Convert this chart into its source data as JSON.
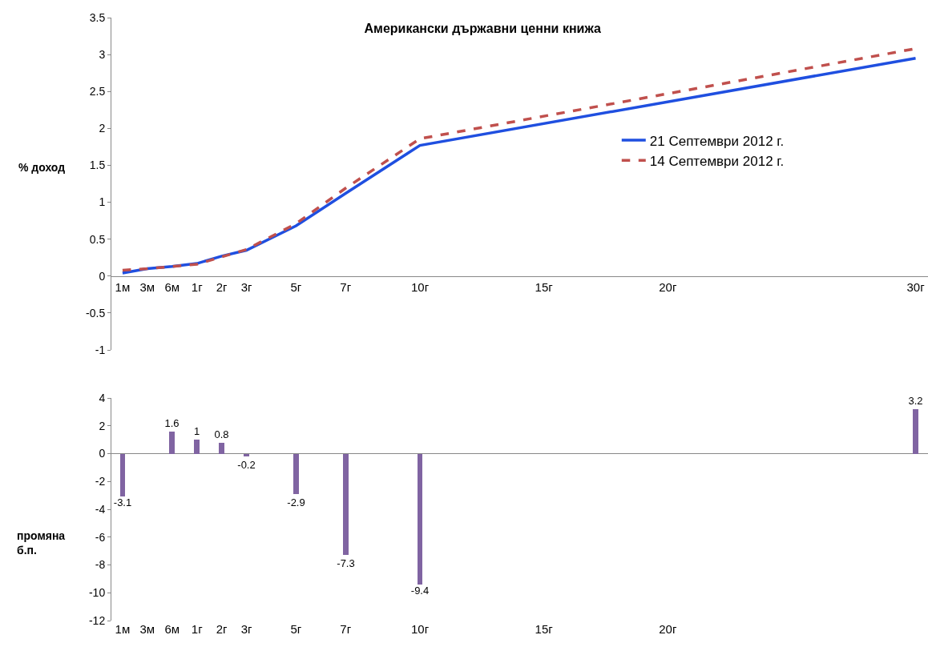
{
  "chart_data": [
    {
      "type": "line",
      "title": "Американски държавни ценни книжа",
      "ylabel": "% доход",
      "categories": [
        "1м",
        "3м",
        "6м",
        "1г",
        "2г",
        "3г",
        null,
        "5г",
        null,
        "7г",
        null,
        null,
        "10г",
        null,
        null,
        null,
        null,
        "15г",
        null,
        null,
        null,
        null,
        "20г",
        null,
        null,
        null,
        null,
        null,
        null,
        null,
        null,
        null,
        "30г"
      ],
      "ylim": [
        -1,
        3.5
      ],
      "yticks": [
        -1,
        -0.5,
        0,
        0.5,
        1,
        1.5,
        2,
        2.5,
        3,
        3.5
      ],
      "legend": "right",
      "series": [
        {
          "name": "21 Септември 2012 г.",
          "color": "#1f4fe0",
          "line_style": "solid",
          "values": [
            0.04,
            0.1,
            0.13,
            0.17,
            0.27,
            0.35,
            null,
            0.68,
            null,
            1.12,
            null,
            null,
            1.77,
            null,
            null,
            null,
            null,
            null,
            null,
            null,
            null,
            null,
            null,
            null,
            null,
            null,
            null,
            null,
            null,
            null,
            null,
            null,
            2.95
          ]
        },
        {
          "name": "14 Септември 2012 г.",
          "color": "#c0504d",
          "line_style": "dashed",
          "values": [
            0.08,
            0.1,
            0.13,
            0.16,
            0.26,
            0.36,
            null,
            0.71,
            null,
            1.19,
            null,
            null,
            1.86,
            null,
            null,
            null,
            null,
            null,
            null,
            null,
            null,
            null,
            null,
            null,
            null,
            null,
            null,
            null,
            null,
            null,
            null,
            null,
            3.08
          ]
        }
      ]
    },
    {
      "type": "bar",
      "ylabel": "промяна б.п.",
      "categories": [
        "1м",
        "3м",
        "6м",
        "1г",
        "2г",
        "3г",
        null,
        "5г",
        null,
        "7г",
        null,
        null,
        "10г",
        null,
        null,
        null,
        null,
        "15г",
        null,
        null,
        null,
        null,
        "20г",
        null,
        null,
        null,
        null,
        null,
        null,
        null,
        null,
        null,
        null
      ],
      "ylim": [
        -12,
        4
      ],
      "yticks": [
        -12,
        -10,
        -8,
        -6,
        -4,
        -2,
        0,
        2,
        4
      ],
      "color": "#8064a2",
      "data_labels": true,
      "values": [
        -3.1,
        null,
        1.6,
        1,
        0.8,
        -0.2,
        null,
        -2.9,
        null,
        -7.3,
        null,
        null,
        -9.4,
        null,
        null,
        null,
        null,
        null,
        null,
        null,
        null,
        null,
        null,
        null,
        null,
        null,
        null,
        null,
        null,
        null,
        null,
        null,
        3.2
      ]
    }
  ]
}
